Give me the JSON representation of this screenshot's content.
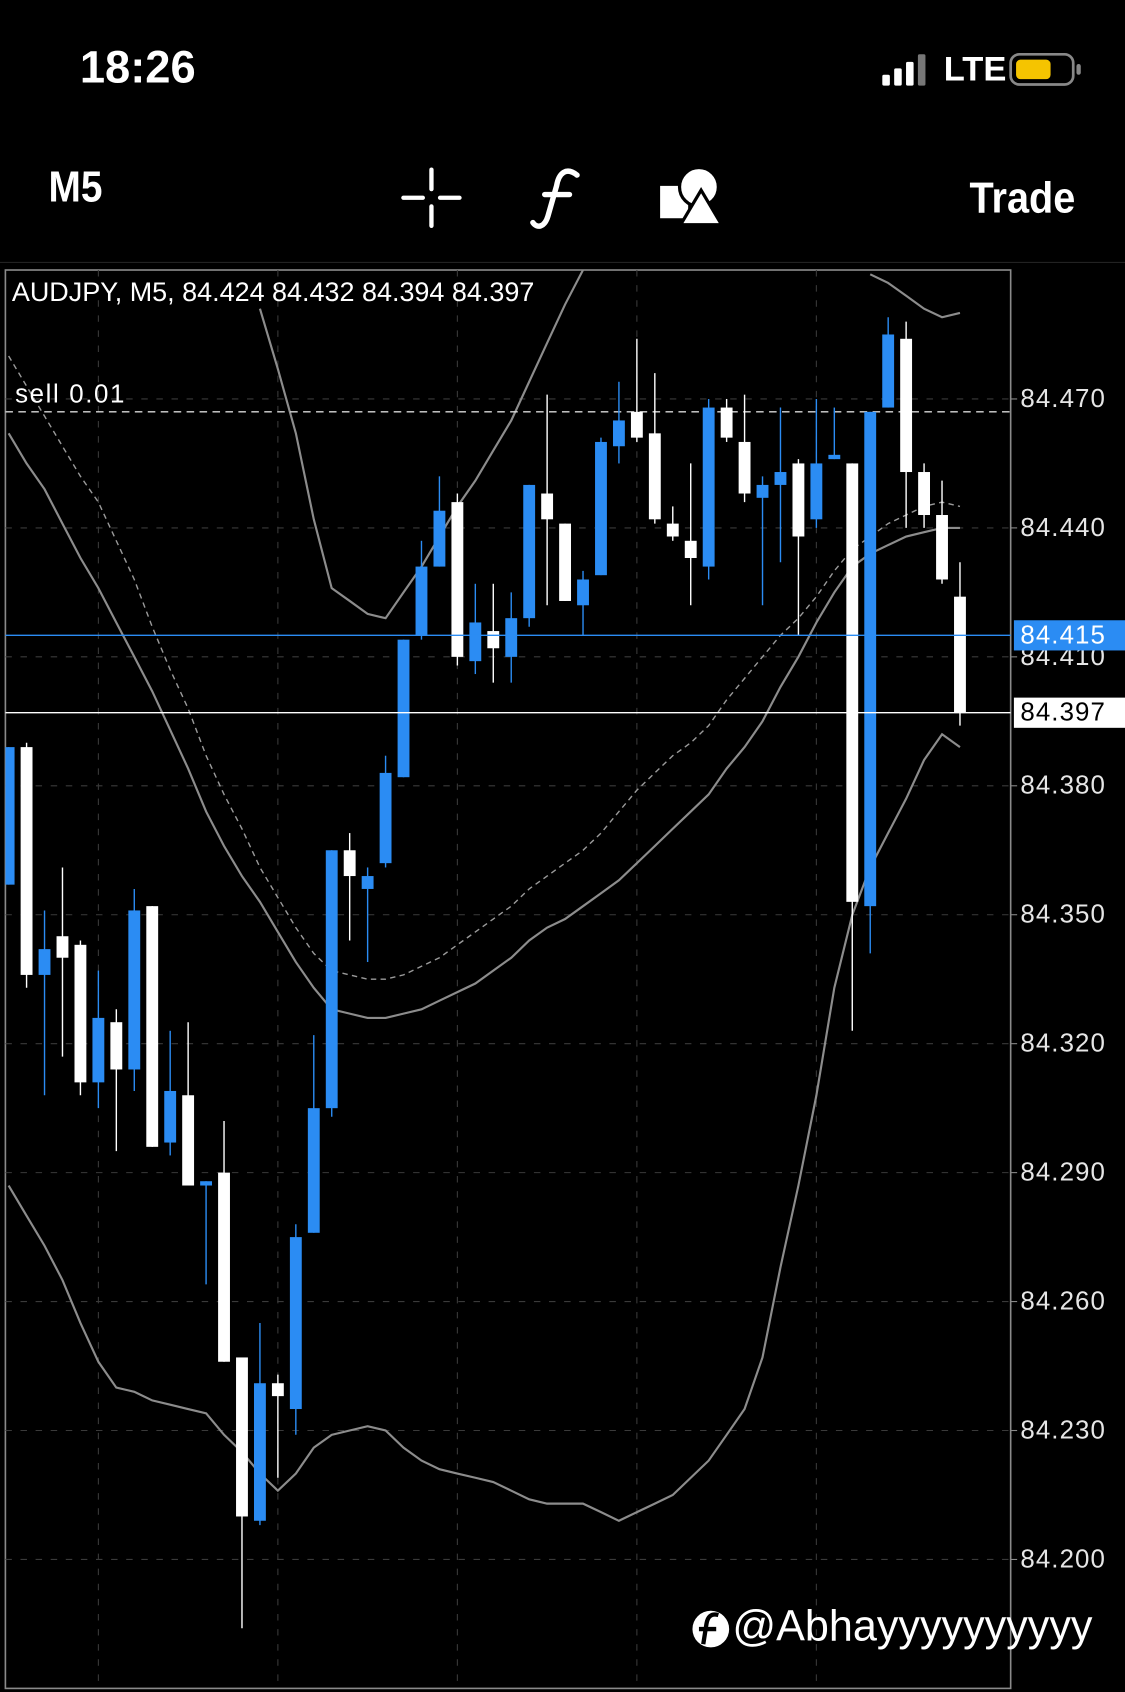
{
  "status_bar": {
    "time": "18:26",
    "network": "LTE"
  },
  "toolbar": {
    "timeframe": "M5",
    "action": "Trade"
  },
  "chart_data": {
    "type": "candlestick",
    "title": "AUDJPY, M5, 84.424 84.432 84.394 84.397",
    "ylim": [
      84.17,
      84.5
    ],
    "yticks": [
      {
        "value": 84.47,
        "label": "84.470"
      },
      {
        "value": 84.44,
        "label": "84.440"
      },
      {
        "value": 84.41,
        "label": "84.410"
      },
      {
        "value": 84.38,
        "label": "84.380"
      },
      {
        "value": 84.35,
        "label": "84.350"
      },
      {
        "value": 84.32,
        "label": "84.320"
      },
      {
        "value": 84.29,
        "label": "84.290"
      },
      {
        "value": 84.26,
        "label": "84.260"
      },
      {
        "value": 84.23,
        "label": "84.230"
      },
      {
        "value": 84.2,
        "label": "84.200"
      }
    ],
    "grid": true,
    "up_color": "#2b8cf3",
    "down_color": "#ffffff",
    "open": [
      84.357,
      84.389,
      84.336,
      84.345,
      84.343,
      84.311,
      84.325,
      84.314,
      84.352,
      84.297,
      84.308,
      84.287,
      84.29,
      84.247,
      84.209,
      84.241,
      84.235,
      84.276,
      84.305,
      84.365,
      84.356,
      84.362,
      84.382,
      84.415,
      84.431,
      84.446,
      84.409,
      84.416,
      84.41,
      84.419,
      84.448,
      84.441,
      84.422,
      84.429,
      84.459,
      84.467,
      84.462,
      84.441,
      84.437,
      84.431,
      84.468,
      84.46,
      84.447,
      84.45,
      84.455,
      84.442,
      84.456,
      84.455,
      84.352,
      84.468,
      84.484,
      84.453,
      84.443,
      84.424
    ],
    "high": [
      84.389,
      84.39,
      84.351,
      84.361,
      84.344,
      84.337,
      84.328,
      84.356,
      84.352,
      84.323,
      84.325,
      84.288,
      84.302,
      84.247,
      84.255,
      84.243,
      84.278,
      84.322,
      84.365,
      84.369,
      84.361,
      84.387,
      84.414,
      84.437,
      84.452,
      84.448,
      84.427,
      84.427,
      84.425,
      84.45,
      84.471,
      84.441,
      84.43,
      84.461,
      84.474,
      84.484,
      84.476,
      84.445,
      84.455,
      84.47,
      84.47,
      84.471,
      84.452,
      84.468,
      84.456,
      84.47,
      84.468,
      84.455,
      84.467,
      84.489,
      84.488,
      84.455,
      84.451,
      84.432
    ],
    "low": [
      84.357,
      84.333,
      84.308,
      84.317,
      84.308,
      84.305,
      84.295,
      84.309,
      84.296,
      84.294,
      84.287,
      84.264,
      84.246,
      84.184,
      84.208,
      84.219,
      84.229,
      84.276,
      84.303,
      84.344,
      84.339,
      84.361,
      84.382,
      84.414,
      84.431,
      84.408,
      84.406,
      84.404,
      84.404,
      84.417,
      84.422,
      84.423,
      84.415,
      84.429,
      84.455,
      84.46,
      84.441,
      84.437,
      84.422,
      84.428,
      84.46,
      84.446,
      84.422,
      84.432,
      84.415,
      84.44,
      84.456,
      84.323,
      84.341,
      84.468,
      84.44,
      84.44,
      84.427,
      84.394
    ],
    "close": [
      84.389,
      84.336,
      84.342,
      84.34,
      84.311,
      84.326,
      84.314,
      84.351,
      84.296,
      84.309,
      84.287,
      84.288,
      84.246,
      84.21,
      84.241,
      84.238,
      84.275,
      84.305,
      84.365,
      84.359,
      84.359,
      84.383,
      84.414,
      84.431,
      84.444,
      84.41,
      84.418,
      84.412,
      84.419,
      84.45,
      84.442,
      84.423,
      84.428,
      84.46,
      84.465,
      84.461,
      84.442,
      84.438,
      84.433,
      84.468,
      84.461,
      84.448,
      84.45,
      84.453,
      84.438,
      84.455,
      84.457,
      84.353,
      84.467,
      84.485,
      84.453,
      84.443,
      84.428,
      84.397
    ],
    "lines": [
      {
        "color": "#8c8c8c",
        "dashed": false,
        "values": [
          84.462,
          84.455,
          84.449,
          84.441,
          84.433,
          84.426,
          84.418,
          84.41,
          84.402,
          84.393,
          84.384,
          84.374,
          84.366,
          84.359,
          84.353,
          84.346,
          84.339,
          84.333,
          84.328,
          84.327,
          84.326,
          84.326,
          84.327,
          84.328,
          84.33,
          84.332,
          84.334,
          84.337,
          84.34,
          84.344,
          84.347,
          84.349,
          84.352,
          84.355,
          84.358,
          84.362,
          84.366,
          84.37,
          84.374,
          84.378,
          84.384,
          84.389,
          84.395,
          84.403,
          84.41,
          84.418,
          84.425,
          84.431,
          84.434,
          84.436,
          84.438,
          84.439,
          84.44,
          84.44
        ]
      },
      {
        "color": "#9a9a9a",
        "dashed": true,
        "values": [
          84.48,
          84.473,
          84.466,
          84.459,
          84.452,
          84.446,
          84.437,
          84.428,
          84.417,
          84.407,
          84.398,
          84.387,
          84.378,
          84.37,
          84.361,
          84.354,
          84.347,
          84.341,
          84.337,
          84.336,
          84.335,
          84.335,
          84.336,
          84.338,
          84.34,
          84.343,
          84.346,
          84.349,
          84.352,
          84.356,
          84.359,
          84.362,
          84.365,
          84.369,
          84.374,
          84.379,
          84.383,
          84.387,
          84.39,
          84.394,
          84.4,
          84.405,
          84.41,
          84.415,
          84.419,
          84.424,
          84.43,
          84.435,
          84.438,
          84.441,
          84.443,
          84.445,
          84.446,
          84.445
        ]
      },
      {
        "color": "#8c8c8c",
        "dashed": false,
        "values": [
          null,
          null,
          null,
          null,
          null,
          null,
          null,
          null,
          null,
          null,
          null,
          null,
          null,
          null,
          84.491,
          84.477,
          84.462,
          84.442,
          84.426,
          84.423,
          84.42,
          84.419,
          84.425,
          84.431,
          84.438,
          84.445,
          84.451,
          84.458,
          84.465,
          84.474,
          84.483,
          84.492,
          84.5,
          null,
          null,
          null,
          null,
          null,
          null,
          null,
          null,
          null,
          null,
          null,
          null,
          null,
          null,
          null,
          84.499,
          84.497,
          84.494,
          84.491,
          84.489,
          84.49
        ]
      },
      {
        "color": "#8c8c8c",
        "dashed": false,
        "values": [
          84.287,
          84.28,
          84.273,
          84.265,
          84.255,
          84.246,
          84.24,
          84.239,
          84.237,
          84.236,
          84.235,
          84.234,
          84.229,
          84.225,
          84.22,
          84.216,
          84.22,
          84.226,
          84.229,
          84.23,
          84.231,
          84.23,
          84.226,
          84.223,
          84.221,
          84.22,
          84.219,
          84.218,
          84.216,
          84.214,
          84.213,
          84.213,
          84.213,
          84.211,
          84.209,
          84.211,
          84.213,
          84.215,
          84.219,
          84.223,
          84.229,
          84.235,
          84.247,
          84.268,
          84.287,
          84.308,
          84.333,
          84.35,
          84.361,
          84.369,
          84.377,
          84.386,
          84.392,
          84.389
        ]
      }
    ],
    "order_line": {
      "label": "sell 0.01",
      "value": 84.467
    },
    "price_lines": [
      {
        "value": 84.415,
        "color": "#2b8cf3"
      },
      {
        "value": 84.397,
        "color": "#ffffff"
      }
    ]
  },
  "watermark": "@Abhayyyyyyyyyy"
}
